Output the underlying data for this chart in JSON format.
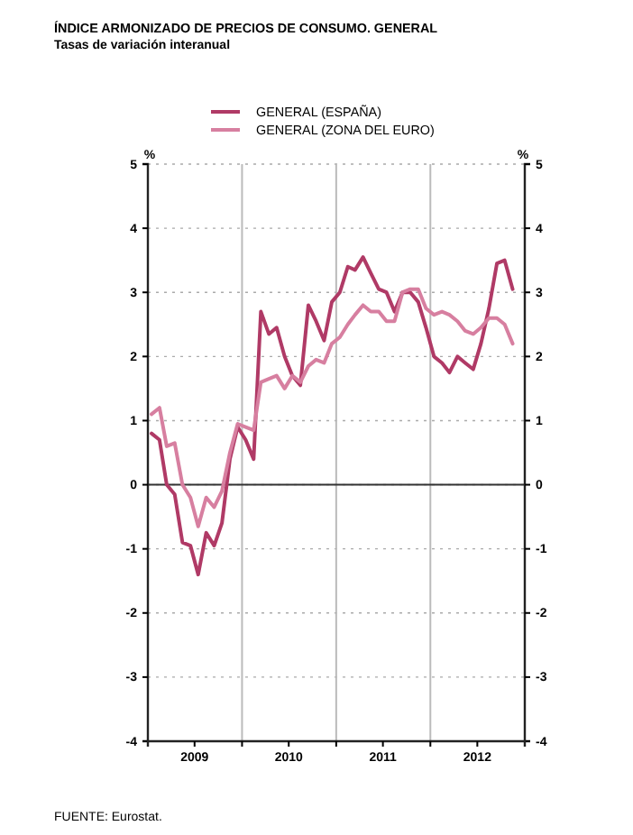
{
  "chart_data": {
    "type": "line",
    "title": "ÍNDICE ARMONIZADO DE PRECIOS DE CONSUMO. GENERAL",
    "subtitle": "Tasas de variación interanual",
    "ylabel": "%",
    "y2label": "%",
    "x": [
      "2009-01-15",
      "2009-02-15",
      "2009-03-15",
      "2009-04-15",
      "2009-05-15",
      "2009-06-15",
      "2009-07-15",
      "2009-08-15",
      "2009-09-15",
      "2009-10-15",
      "2009-11-15",
      "2009-12-15",
      "2010-01-15",
      "2010-02-15",
      "2010-03-15",
      "2010-04-15",
      "2010-05-15",
      "2010-06-15",
      "2010-07-15",
      "2010-08-15",
      "2010-09-15",
      "2010-10-15",
      "2010-11-15",
      "2010-12-15",
      "2011-01-15",
      "2011-02-15",
      "2011-03-15",
      "2011-04-15",
      "2011-05-15",
      "2011-06-15",
      "2011-07-15",
      "2011-08-15",
      "2011-09-15",
      "2011-10-15",
      "2011-11-15",
      "2011-12-15",
      "2012-01-15",
      "2012-02-15",
      "2012-03-15",
      "2012-04-15",
      "2012-05-15",
      "2012-06-15",
      "2012-07-15",
      "2012-08-15",
      "2012-09-15",
      "2012-10-15",
      "2012-11-15"
    ],
    "series": [
      {
        "name": "GENERAL (ESPAÑA)",
        "color": "#b03a66",
        "values": [
          0.8,
          0.7,
          0.0,
          -0.15,
          -0.9,
          -0.95,
          -1.4,
          -0.75,
          -0.95,
          -0.6,
          0.4,
          0.9,
          0.7,
          0.4,
          2.7,
          2.35,
          2.45,
          2.0,
          1.7,
          1.55,
          2.8,
          2.55,
          2.25,
          2.85,
          3.0,
          3.4,
          3.35,
          3.55,
          3.3,
          3.05,
          3.0,
          2.7,
          3.0,
          3.0,
          2.85,
          2.45,
          2.0,
          1.9,
          1.75,
          2.0,
          1.9,
          1.8,
          2.2,
          2.75,
          3.45,
          3.5,
          3.05
        ]
      },
      {
        "name": "GENERAL (ZONA DEL EURO)",
        "color": "#d77fa0",
        "values": [
          1.1,
          1.2,
          0.6,
          0.65,
          0.0,
          -0.2,
          -0.65,
          -0.2,
          -0.35,
          -0.1,
          0.5,
          0.95,
          0.9,
          0.85,
          1.6,
          1.65,
          1.7,
          1.5,
          1.7,
          1.6,
          1.85,
          1.95,
          1.9,
          2.2,
          2.3,
          2.5,
          2.65,
          2.8,
          2.7,
          2.7,
          2.55,
          2.55,
          3.0,
          3.05,
          3.05,
          2.75,
          2.65,
          2.7,
          2.65,
          2.55,
          2.4,
          2.35,
          2.45,
          2.6,
          2.6,
          2.5,
          2.2
        ]
      }
    ],
    "xlim": [
      "2009-01-01",
      "2013-01-01"
    ],
    "xticks": [
      {
        "value": "2009-07-01",
        "label": "2009"
      },
      {
        "value": "2010-01-01",
        "label": null
      },
      {
        "value": "2010-07-01",
        "label": "2010"
      },
      {
        "value": "2011-01-01",
        "label": null
      },
      {
        "value": "2011-07-01",
        "label": "2011"
      },
      {
        "value": "2012-01-01",
        "label": null
      },
      {
        "value": "2012-07-01",
        "label": "2012"
      }
    ],
    "ylim": [
      -4,
      5
    ],
    "yticks": [
      -4,
      -3,
      -2,
      -1,
      0,
      1,
      2,
      3,
      4,
      5
    ],
    "y2lim": [
      -4,
      5
    ],
    "y2ticks": [
      -4,
      -3,
      -2,
      -1,
      0,
      1,
      2,
      3,
      4,
      5
    ],
    "ref_lines": [
      {
        "axis": "y",
        "value": 0,
        "color": "#333333"
      }
    ],
    "grid": true,
    "legend": "top",
    "marker": "none",
    "line_style": "solid",
    "annotations": [
      "FUENTE: Eurostat."
    ]
  }
}
